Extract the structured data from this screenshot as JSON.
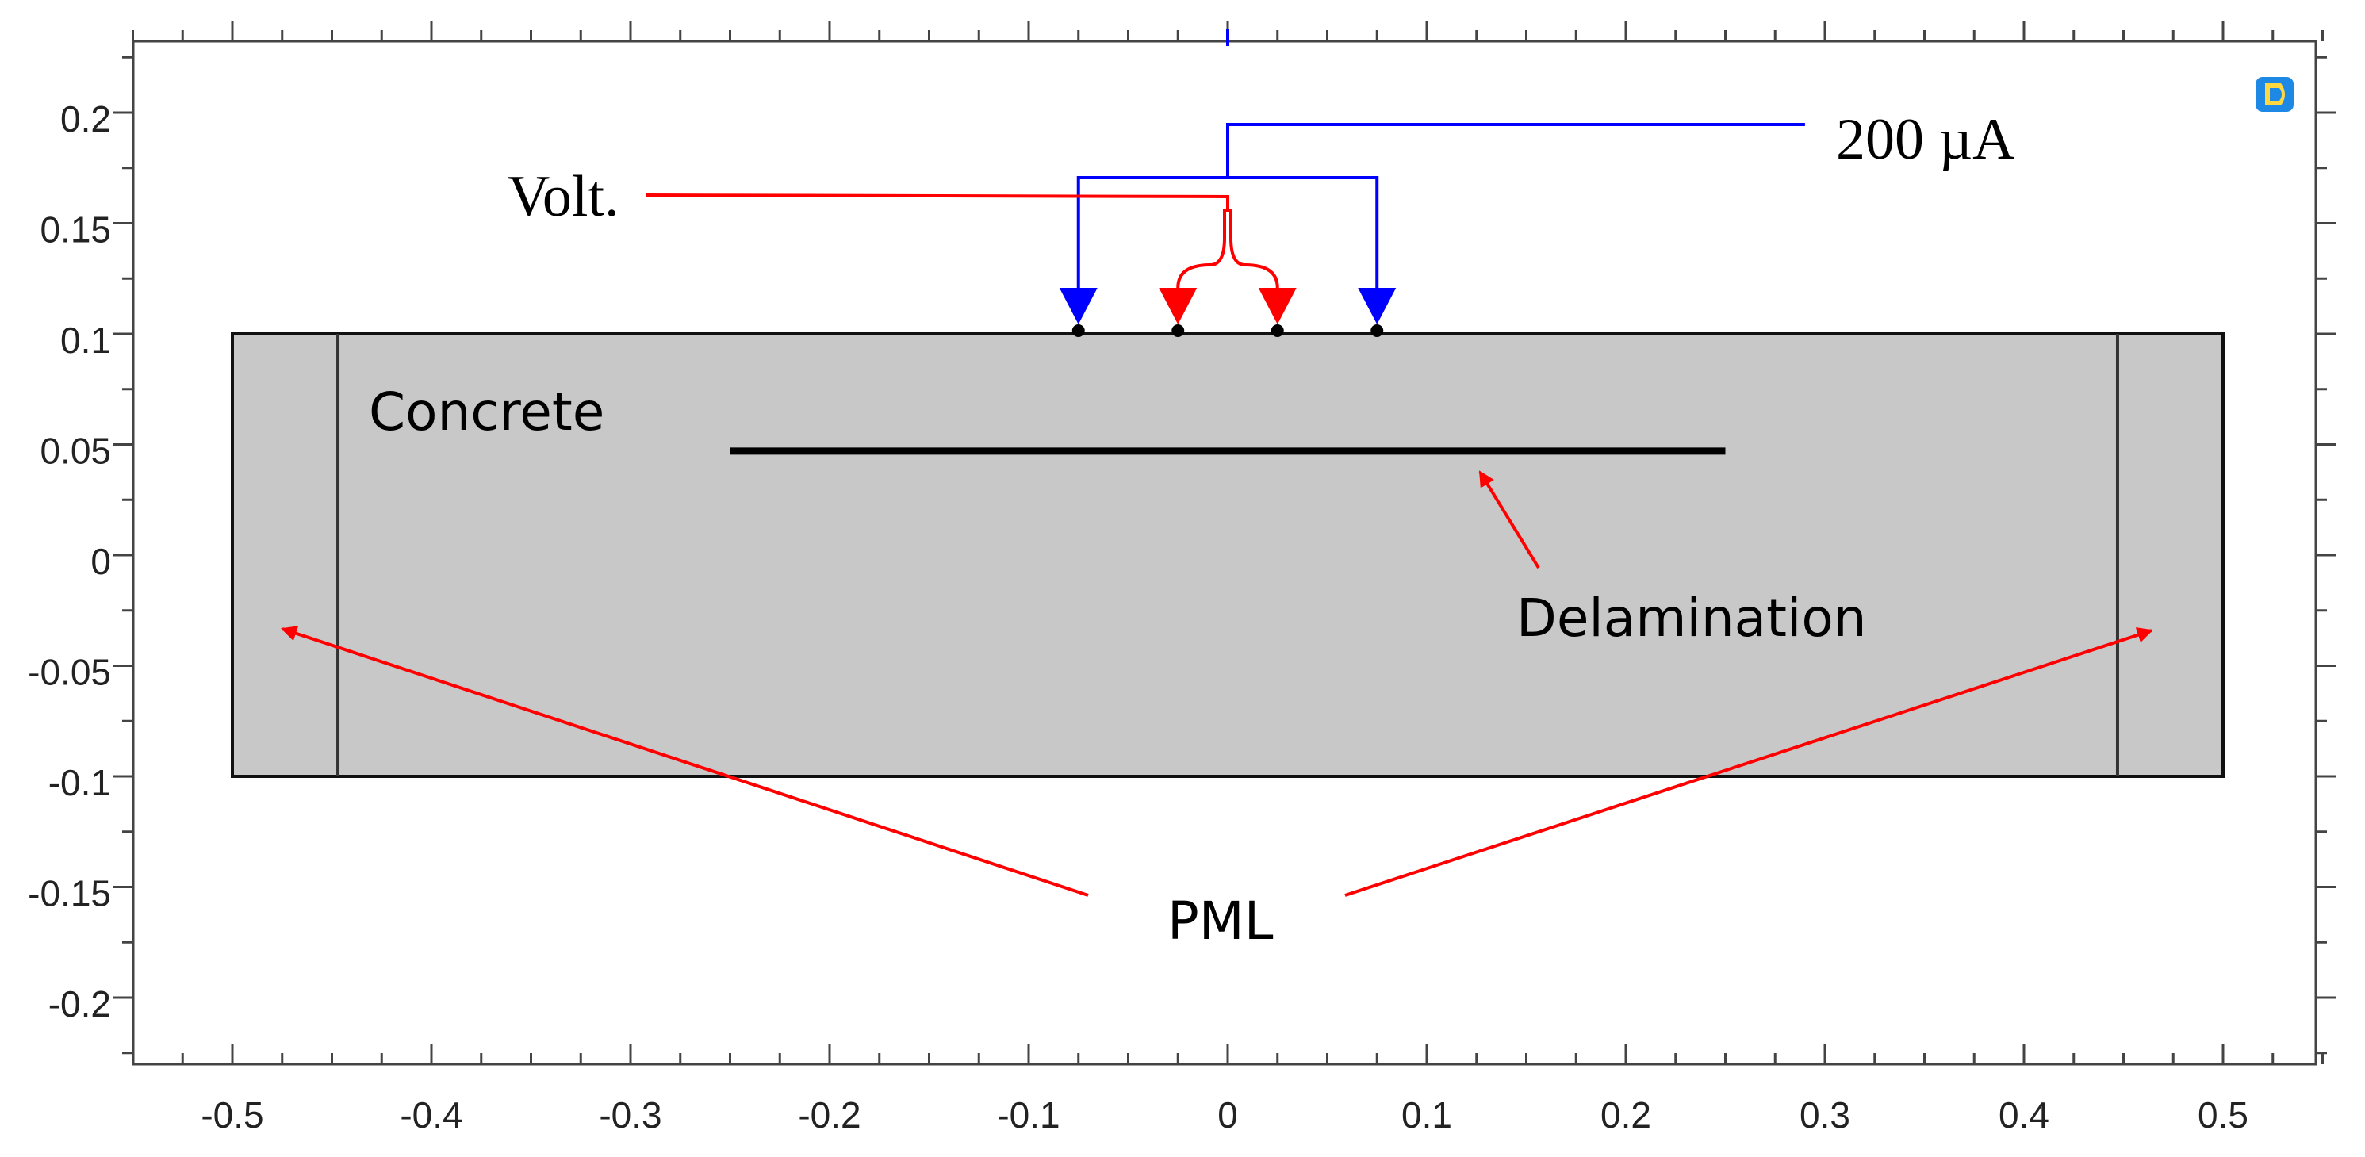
{
  "axes": {
    "x_range": [
      -0.55,
      0.55
    ],
    "y_range": [
      -0.235,
      0.235
    ],
    "x_ticks": [
      -0.5,
      -0.4,
      -0.3,
      -0.2,
      -0.1,
      0,
      0.1,
      0.2,
      0.3,
      0.4,
      0.5
    ],
    "x_tick_labels": [
      "-0.5",
      "-0.4",
      "-0.3",
      "-0.2",
      "-0.1",
      "0",
      "0.1",
      "0.2",
      "0.3",
      "0.4",
      "0.5"
    ],
    "y_ticks": [
      0.2,
      0.15,
      0.1,
      0.05,
      0,
      -0.05,
      -0.1,
      -0.15,
      -0.2
    ],
    "y_tick_labels": [
      "0.2",
      "0.15",
      "0.1",
      "0.05",
      "0",
      "-0.05",
      "-0.1",
      "-0.15",
      "-0.2"
    ],
    "minor_step": 0.025,
    "grid": false
  },
  "geometry": {
    "domain": {
      "x": [
        -0.5,
        0.5
      ],
      "y": [
        -0.1,
        0.1
      ]
    },
    "pml_boundaries_x": [
      -0.447,
      0.447
    ],
    "delamination": {
      "x": [
        -0.25,
        0.25
      ],
      "y": 0.047
    },
    "electrodes_x": [
      -0.075,
      -0.025,
      0.025,
      0.075
    ],
    "current_electrodes_x": [
      -0.075,
      0.075
    ],
    "voltage_electrodes_x": [
      -0.025,
      0.025
    ]
  },
  "labels": {
    "current": "200 µA",
    "voltage": "Volt.",
    "concrete": "Concrete",
    "delamination": "Delamination",
    "pml": "PML"
  },
  "colors": {
    "domain_fill": "#c8c8c8",
    "current": "#0000ff",
    "voltage": "#ff0000",
    "axis": "#444444",
    "logo": "#1e88e5"
  },
  "icons": {
    "logo": "software-logo-icon"
  }
}
